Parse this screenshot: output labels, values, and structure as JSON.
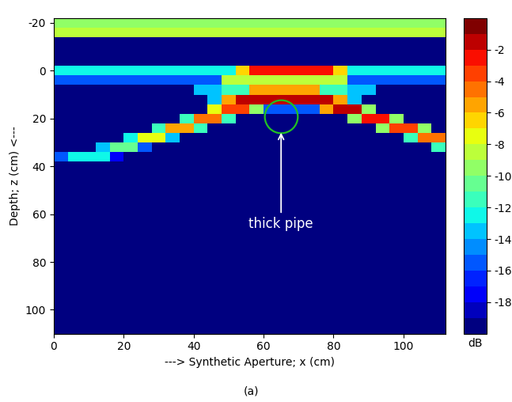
{
  "chart_data": {
    "type": "heatmap",
    "x_label": "---> Synthetic Aperture; x (cm)",
    "y_label": "Depth; z (cm) <---",
    "caption": "(a)",
    "xlim": [
      0,
      112
    ],
    "ylim": [
      110,
      -22
    ],
    "xticks": [
      0,
      20,
      40,
      60,
      80,
      100
    ],
    "yticks": [
      -20,
      0,
      20,
      40,
      60,
      80,
      100
    ],
    "annotation": {
      "text": "thick pipe",
      "x": 65,
      "z": 25,
      "pipe": {
        "x": 65,
        "z": 19
      }
    },
    "colorbar": {
      "range": [
        -20,
        0
      ],
      "ticks": [
        -2,
        -4,
        -6,
        -8,
        -10,
        -12,
        -14,
        -16,
        -18
      ],
      "label": "dB"
    },
    "x": [
      2,
      6,
      10,
      14,
      18,
      22,
      26,
      30,
      34,
      38,
      42,
      46,
      50,
      54,
      58,
      62,
      66,
      70,
      74,
      78,
      82,
      86,
      90,
      94,
      98,
      102,
      106,
      110
    ],
    "z": [
      -20,
      -16,
      -12,
      -8,
      -4,
      0,
      4,
      8,
      12,
      16,
      20,
      24,
      28,
      32,
      36,
      40,
      44,
      48,
      52,
      56,
      60,
      64,
      68,
      72,
      76,
      80,
      84,
      88,
      92,
      96,
      100,
      104,
      108
    ],
    "cells": [
      [
        -10,
        -10,
        -10,
        -10,
        -10,
        -10,
        -10,
        -10,
        -10,
        -10,
        -10,
        -10,
        -10,
        -10,
        -10,
        -10,
        -10,
        -10,
        -10,
        -10,
        -10,
        -10,
        -10,
        -10,
        -10,
        -10,
        -10,
        -10
      ],
      [
        -9,
        -9,
        -9,
        -9,
        -9,
        -9,
        -9,
        -9,
        -9,
        -9,
        -9,
        -9,
        -9,
        -9,
        -9,
        -9,
        -9,
        -9,
        -9,
        -9,
        -9,
        -9,
        -9,
        -9,
        -9,
        -9,
        -9,
        -9
      ],
      [
        -20,
        -20,
        -20,
        -20,
        -20,
        -20,
        -20,
        -20,
        -20,
        -20,
        -20,
        -20,
        -20,
        -20,
        -20,
        -20,
        -20,
        -20,
        -20,
        -20,
        -20,
        -20,
        -20,
        -20,
        -20,
        -20,
        -20,
        -20
      ],
      [
        -20,
        -20,
        -20,
        -20,
        -20,
        -20,
        -20,
        -20,
        -20,
        -20,
        -20,
        -20,
        -20,
        -20,
        -20,
        -20,
        -20,
        -20,
        -20,
        -20,
        -20,
        -20,
        -20,
        -20,
        -20,
        -20,
        -20,
        -20
      ],
      [
        -20,
        -20,
        -20,
        -20,
        -20,
        -20,
        -20,
        -20,
        -20,
        -20,
        -20,
        -20,
        -20,
        -20,
        -20,
        -20,
        -20,
        -20,
        -20,
        -20,
        -20,
        -20,
        -20,
        -20,
        -20,
        -20,
        -20,
        -20
      ],
      [
        -13,
        -13,
        -13,
        -13,
        -13,
        -13,
        -13,
        -13,
        -13,
        -13,
        -13,
        -13,
        -13,
        -7,
        -3,
        -3,
        -3,
        -3,
        -3,
        -3,
        -7,
        -13,
        -13,
        -13,
        -13,
        -13,
        -13,
        -13
      ],
      [
        -16,
        -16,
        -16,
        -16,
        -16,
        -16,
        -16,
        -16,
        -16,
        -16,
        -16,
        -16,
        -9,
        -9,
        -9,
        -9,
        -9,
        -9,
        -9,
        -9,
        -9,
        -16,
        -16,
        -16,
        -16,
        -16,
        -16,
        -16
      ],
      [
        -20,
        -20,
        -20,
        -20,
        -20,
        -20,
        -20,
        -20,
        -20,
        -20,
        -14,
        -14,
        -12,
        -12,
        -6,
        -6,
        -6,
        -6,
        -6,
        -12,
        -12,
        -14,
        -14,
        -20,
        -20,
        -20,
        -20,
        -20
      ],
      [
        -20,
        -20,
        -20,
        -20,
        -20,
        -20,
        -20,
        -20,
        -20,
        -20,
        -20,
        -14,
        -6,
        -2,
        -2,
        -2,
        -2,
        -2,
        -2,
        -2,
        -6,
        -14,
        -20,
        -20,
        -20,
        -20,
        -20,
        -20
      ],
      [
        -20,
        -20,
        -20,
        -20,
        -20,
        -20,
        -20,
        -20,
        -20,
        -20,
        -20,
        -8,
        -4,
        -4,
        -10,
        -16,
        -16,
        -16,
        -16,
        -6,
        -2,
        -2,
        -10,
        -20,
        -20,
        -20,
        -20,
        -20
      ],
      [
        -20,
        -20,
        -20,
        -20,
        -20,
        -20,
        -20,
        -20,
        -20,
        -12,
        -5,
        -5,
        -12,
        -20,
        -20,
        -20,
        -20,
        -20,
        -20,
        -20,
        -20,
        -10,
        -3,
        -3,
        -10,
        -20,
        -20,
        -20
      ],
      [
        -20,
        -20,
        -20,
        -20,
        -20,
        -20,
        -20,
        -12,
        -6,
        -6,
        -12,
        -20,
        -20,
        -20,
        -20,
        -20,
        -20,
        -20,
        -20,
        -20,
        -20,
        -20,
        -20,
        -10,
        -4,
        -4,
        -10,
        -20
      ],
      [
        -20,
        -20,
        -20,
        -20,
        -20,
        -13,
        -8,
        -8,
        -14,
        -20,
        -20,
        -20,
        -20,
        -20,
        -20,
        -20,
        -20,
        -20,
        -20,
        -20,
        -20,
        -20,
        -20,
        -20,
        -20,
        -12,
        -5,
        -5
      ],
      [
        -20,
        -20,
        -20,
        -14,
        -11,
        -11,
        -16,
        -20,
        -20,
        -20,
        -20,
        -20,
        -20,
        -20,
        -20,
        -20,
        -20,
        -20,
        -20,
        -20,
        -20,
        -20,
        -20,
        -20,
        -20,
        -20,
        -20,
        -12
      ],
      [
        -16,
        -13,
        -13,
        -13,
        -18,
        -20,
        -20,
        -20,
        -20,
        -20,
        -20,
        -20,
        -20,
        -20,
        -20,
        -20,
        -20,
        -20,
        -20,
        -20,
        -20,
        -20,
        -20,
        -20,
        -20,
        -20,
        -20,
        -20
      ],
      [
        -20,
        -20,
        -20,
        -20,
        -20,
        -20,
        -20,
        -20,
        -20,
        -20,
        -20,
        -20,
        -20,
        -20,
        -20,
        -20,
        -20,
        -20,
        -20,
        -20,
        -20,
        -20,
        -20,
        -20,
        -20,
        -20,
        -20,
        -20
      ],
      [
        -20,
        -20,
        -20,
        -20,
        -20,
        -20,
        -20,
        -20,
        -20,
        -20,
        -20,
        -20,
        -20,
        -20,
        -20,
        -20,
        -20,
        -20,
        -20,
        -20,
        -20,
        -20,
        -20,
        -20,
        -20,
        -20,
        -20,
        -20
      ],
      [
        -20,
        -20,
        -20,
        -20,
        -20,
        -20,
        -20,
        -20,
        -20,
        -20,
        -20,
        -20,
        -20,
        -20,
        -20,
        -20,
        -20,
        -20,
        -20,
        -20,
        -20,
        -20,
        -20,
        -20,
        -20,
        -20,
        -20,
        -20
      ],
      [
        -20,
        -20,
        -20,
        -20,
        -20,
        -20,
        -20,
        -20,
        -20,
        -20,
        -20,
        -20,
        -20,
        -20,
        -20,
        -20,
        -20,
        -20,
        -20,
        -20,
        -20,
        -20,
        -20,
        -20,
        -20,
        -20,
        -20,
        -20
      ],
      [
        -20,
        -20,
        -20,
        -20,
        -20,
        -20,
        -20,
        -20,
        -20,
        -20,
        -20,
        -20,
        -20,
        -20,
        -20,
        -20,
        -20,
        -20,
        -20,
        -20,
        -20,
        -20,
        -20,
        -20,
        -20,
        -20,
        -20,
        -20
      ],
      [
        -20,
        -20,
        -20,
        -20,
        -20,
        -20,
        -20,
        -20,
        -20,
        -20,
        -20,
        -20,
        -20,
        -20,
        -20,
        -20,
        -20,
        -20,
        -20,
        -20,
        -20,
        -20,
        -20,
        -20,
        -20,
        -20,
        -20,
        -20
      ],
      [
        -20,
        -20,
        -20,
        -20,
        -20,
        -20,
        -20,
        -20,
        -20,
        -20,
        -20,
        -20,
        -20,
        -20,
        -20,
        -20,
        -20,
        -20,
        -20,
        -20,
        -20,
        -20,
        -20,
        -20,
        -20,
        -20,
        -20,
        -20
      ],
      [
        -20,
        -20,
        -20,
        -20,
        -20,
        -20,
        -20,
        -20,
        -20,
        -20,
        -20,
        -20,
        -20,
        -20,
        -20,
        -20,
        -20,
        -20,
        -20,
        -20,
        -20,
        -20,
        -20,
        -20,
        -20,
        -20,
        -20,
        -20
      ],
      [
        -20,
        -20,
        -20,
        -20,
        -20,
        -20,
        -20,
        -20,
        -20,
        -20,
        -20,
        -20,
        -20,
        -20,
        -20,
        -20,
        -20,
        -20,
        -20,
        -20,
        -20,
        -20,
        -20,
        -20,
        -20,
        -20,
        -20,
        -20
      ],
      [
        -20,
        -20,
        -20,
        -20,
        -20,
        -20,
        -20,
        -20,
        -20,
        -20,
        -20,
        -20,
        -20,
        -20,
        -20,
        -20,
        -20,
        -20,
        -20,
        -20,
        -20,
        -20,
        -20,
        -20,
        -20,
        -20,
        -20,
        -20
      ],
      [
        -20,
        -20,
        -20,
        -20,
        -20,
        -20,
        -20,
        -20,
        -20,
        -20,
        -20,
        -20,
        -20,
        -20,
        -20,
        -20,
        -20,
        -20,
        -20,
        -20,
        -20,
        -20,
        -20,
        -20,
        -20,
        -20,
        -20,
        -20
      ],
      [
        -20,
        -20,
        -20,
        -20,
        -20,
        -20,
        -20,
        -20,
        -20,
        -20,
        -20,
        -20,
        -20,
        -20,
        -20,
        -20,
        -20,
        -20,
        -20,
        -20,
        -20,
        -20,
        -20,
        -20,
        -20,
        -20,
        -20,
        -20
      ],
      [
        -20,
        -20,
        -20,
        -20,
        -20,
        -20,
        -20,
        -20,
        -20,
        -20,
        -20,
        -20,
        -20,
        -20,
        -20,
        -20,
        -20,
        -20,
        -20,
        -20,
        -20,
        -20,
        -20,
        -20,
        -20,
        -20,
        -20,
        -20
      ],
      [
        -20,
        -20,
        -20,
        -20,
        -20,
        -20,
        -20,
        -20,
        -20,
        -20,
        -20,
        -20,
        -20,
        -20,
        -20,
        -20,
        -20,
        -20,
        -20,
        -20,
        -20,
        -20,
        -20,
        -20,
        -20,
        -20,
        -20,
        -20
      ],
      [
        -20,
        -20,
        -20,
        -20,
        -20,
        -20,
        -20,
        -20,
        -20,
        -20,
        -20,
        -20,
        -20,
        -20,
        -20,
        -20,
        -20,
        -20,
        -20,
        -20,
        -20,
        -20,
        -20,
        -20,
        -20,
        -20,
        -20,
        -20
      ],
      [
        -20,
        -20,
        -20,
        -20,
        -20,
        -20,
        -20,
        -20,
        -20,
        -20,
        -20,
        -20,
        -20,
        -20,
        -20,
        -20,
        -20,
        -20,
        -20,
        -20,
        -20,
        -20,
        -20,
        -20,
        -20,
        -20,
        -20,
        -20
      ],
      [
        -20,
        -20,
        -20,
        -20,
        -20,
        -20,
        -20,
        -20,
        -20,
        -20,
        -20,
        -20,
        -20,
        -20,
        -20,
        -20,
        -20,
        -20,
        -20,
        -20,
        -20,
        -20,
        -20,
        -20,
        -20,
        -20,
        -20,
        -20
      ],
      [
        -20,
        -20,
        -20,
        -20,
        -20,
        -20,
        -20,
        -20,
        -20,
        -20,
        -20,
        -20,
        -20,
        -20,
        -20,
        -20,
        -20,
        -20,
        -20,
        -20,
        -20,
        -20,
        -20,
        -20,
        -20,
        -20,
        -20,
        -20
      ]
    ]
  }
}
